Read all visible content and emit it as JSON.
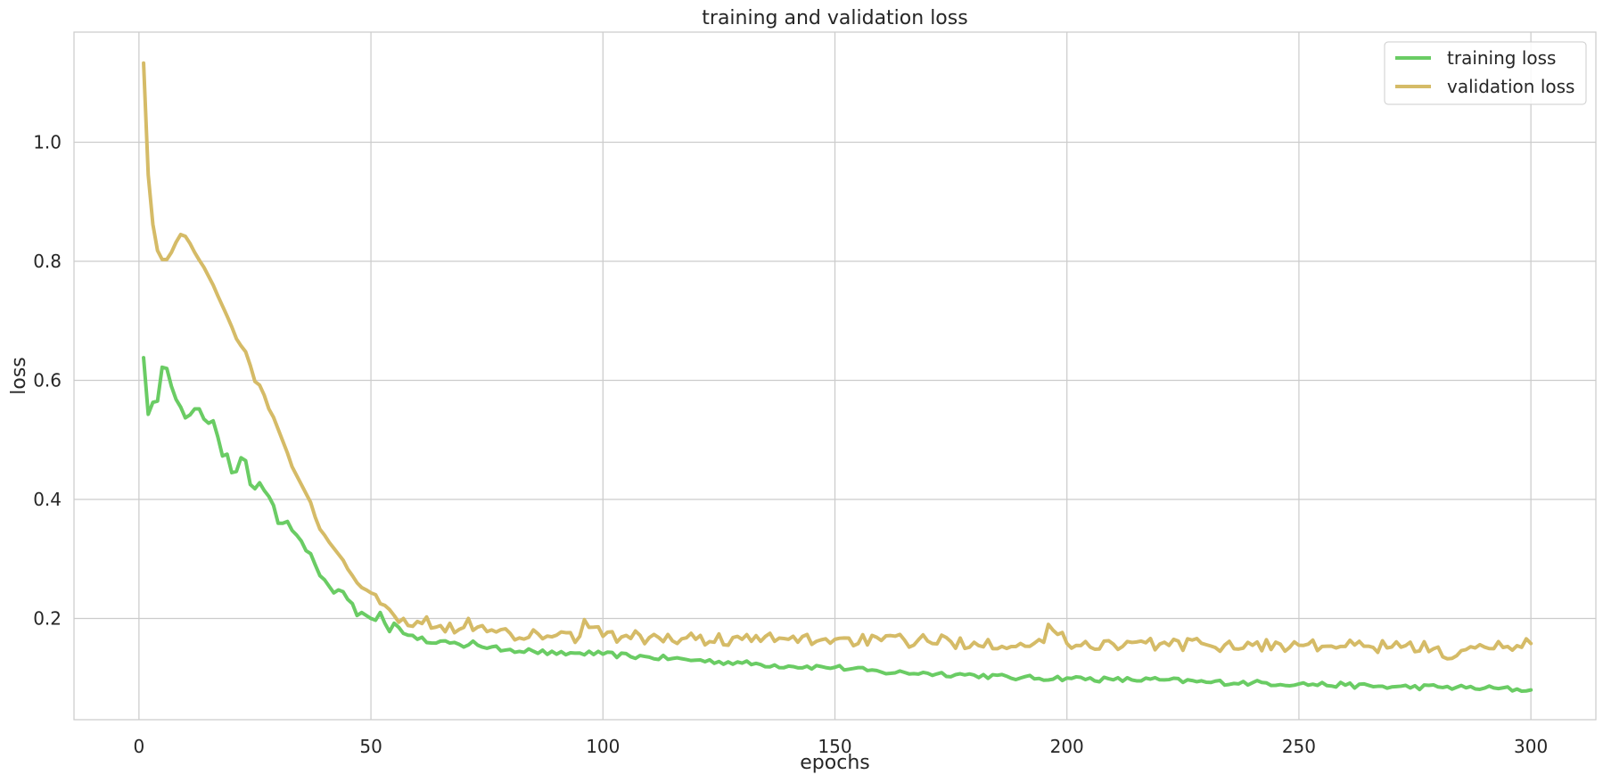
{
  "chart_data": {
    "type": "line",
    "title": "training and validation loss",
    "xlabel": "epochs",
    "ylabel": "loss",
    "xlim": [
      -14,
      314
    ],
    "ylim": [
      0.03,
      1.185
    ],
    "xticks": [
      0,
      50,
      100,
      150,
      200,
      250,
      300
    ],
    "yticks": [
      0.2,
      0.4,
      0.6,
      0.8,
      1.0
    ],
    "ytick_labels": [
      "0.2",
      "0.4",
      "0.6",
      "0.8",
      "1.0"
    ],
    "grid": true,
    "legend_position": "top-right",
    "series": [
      {
        "name": "training loss",
        "color": "#6acc64",
        "keypoints": [
          [
            1,
            0.638
          ],
          [
            2,
            0.543
          ],
          [
            3,
            0.563
          ],
          [
            4,
            0.565
          ],
          [
            5,
            0.622
          ],
          [
            6,
            0.62
          ],
          [
            7,
            0.59
          ],
          [
            8,
            0.568
          ],
          [
            9,
            0.555
          ],
          [
            10,
            0.537
          ],
          [
            11,
            0.542
          ],
          [
            12,
            0.552
          ],
          [
            13,
            0.552
          ],
          [
            14,
            0.535
          ],
          [
            15,
            0.528
          ],
          [
            16,
            0.532
          ],
          [
            17,
            0.505
          ],
          [
            18,
            0.473
          ],
          [
            19,
            0.476
          ],
          [
            20,
            0.445
          ],
          [
            21,
            0.447
          ],
          [
            22,
            0.47
          ],
          [
            23,
            0.465
          ],
          [
            24,
            0.425
          ],
          [
            25,
            0.418
          ],
          [
            26,
            0.428
          ],
          [
            27,
            0.415
          ],
          [
            28,
            0.405
          ],
          [
            29,
            0.39
          ],
          [
            30,
            0.36
          ],
          [
            31,
            0.36
          ],
          [
            32,
            0.363
          ],
          [
            33,
            0.348
          ],
          [
            34,
            0.34
          ],
          [
            35,
            0.33
          ],
          [
            36,
            0.314
          ],
          [
            37,
            0.309
          ],
          [
            38,
            0.29
          ],
          [
            39,
            0.272
          ],
          [
            40,
            0.265
          ],
          [
            42,
            0.243
          ],
          [
            43,
            0.248
          ],
          [
            44,
            0.245
          ],
          [
            45,
            0.232
          ],
          [
            46,
            0.225
          ],
          [
            47,
            0.205
          ],
          [
            48,
            0.21
          ],
          [
            50,
            0.2
          ],
          [
            51,
            0.197
          ],
          [
            52,
            0.21
          ],
          [
            53,
            0.192
          ],
          [
            54,
            0.178
          ],
          [
            55,
            0.192
          ],
          [
            56,
            0.185
          ],
          [
            58,
            0.172
          ],
          [
            60,
            0.165
          ],
          [
            65,
            0.162
          ],
          [
            70,
            0.152
          ],
          [
            72,
            0.162
          ],
          [
            75,
            0.15
          ],
          [
            80,
            0.148
          ],
          [
            85,
            0.145
          ],
          [
            90,
            0.14
          ],
          [
            95,
            0.142
          ],
          [
            100,
            0.14
          ],
          [
            110,
            0.135
          ],
          [
            120,
            0.13
          ],
          [
            130,
            0.125
          ],
          [
            140,
            0.12
          ],
          [
            150,
            0.118
          ],
          [
            160,
            0.11
          ],
          [
            170,
            0.108
          ],
          [
            180,
            0.105
          ],
          [
            190,
            0.1
          ],
          [
            200,
            0.1
          ],
          [
            210,
            0.097
          ],
          [
            220,
            0.097
          ],
          [
            230,
            0.093
          ],
          [
            240,
            0.092
          ],
          [
            250,
            0.09
          ],
          [
            260,
            0.088
          ],
          [
            270,
            0.085
          ],
          [
            280,
            0.085
          ],
          [
            290,
            0.083
          ],
          [
            300,
            0.08
          ]
        ],
        "noise": 0.0045
      },
      {
        "name": "validation loss",
        "color": "#d5bb67",
        "keypoints": [
          [
            1,
            1.133
          ],
          [
            2,
            0.945
          ],
          [
            3,
            0.862
          ],
          [
            4,
            0.818
          ],
          [
            5,
            0.803
          ],
          [
            6,
            0.803
          ],
          [
            7,
            0.815
          ],
          [
            8,
            0.832
          ],
          [
            9,
            0.845
          ],
          [
            10,
            0.842
          ],
          [
            11,
            0.83
          ],
          [
            12,
            0.815
          ],
          [
            13,
            0.802
          ],
          [
            14,
            0.79
          ],
          [
            15,
            0.775
          ],
          [
            16,
            0.76
          ],
          [
            17,
            0.742
          ],
          [
            18,
            0.725
          ],
          [
            19,
            0.708
          ],
          [
            20,
            0.69
          ],
          [
            21,
            0.67
          ],
          [
            22,
            0.658
          ],
          [
            23,
            0.648
          ],
          [
            24,
            0.625
          ],
          [
            25,
            0.598
          ],
          [
            26,
            0.592
          ],
          [
            27,
            0.575
          ],
          [
            28,
            0.552
          ],
          [
            29,
            0.538
          ],
          [
            30,
            0.518
          ],
          [
            31,
            0.498
          ],
          [
            32,
            0.478
          ],
          [
            33,
            0.455
          ],
          [
            34,
            0.44
          ],
          [
            35,
            0.425
          ],
          [
            36,
            0.41
          ],
          [
            37,
            0.395
          ],
          [
            38,
            0.37
          ],
          [
            39,
            0.35
          ],
          [
            40,
            0.34
          ],
          [
            41,
            0.328
          ],
          [
            42,
            0.318
          ],
          [
            43,
            0.308
          ],
          [
            44,
            0.298
          ],
          [
            45,
            0.283
          ],
          [
            46,
            0.272
          ],
          [
            47,
            0.26
          ],
          [
            48,
            0.252
          ],
          [
            49,
            0.248
          ],
          [
            50,
            0.243
          ],
          [
            51,
            0.24
          ],
          [
            52,
            0.225
          ],
          [
            53,
            0.222
          ],
          [
            54,
            0.215
          ],
          [
            55,
            0.205
          ],
          [
            57,
            0.2
          ],
          [
            60,
            0.195
          ],
          [
            65,
            0.188
          ],
          [
            70,
            0.185
          ],
          [
            71,
            0.2
          ],
          [
            72,
            0.18
          ],
          [
            75,
            0.178
          ],
          [
            80,
            0.175
          ],
          [
            90,
            0.172
          ],
          [
            95,
            0.17
          ],
          [
            96,
            0.198
          ],
          [
            100,
            0.17
          ],
          [
            110,
            0.168
          ],
          [
            120,
            0.165
          ],
          [
            130,
            0.165
          ],
          [
            140,
            0.165
          ],
          [
            150,
            0.165
          ],
          [
            160,
            0.163
          ],
          [
            170,
            0.162
          ],
          [
            180,
            0.16
          ],
          [
            190,
            0.158
          ],
          [
            195,
            0.16
          ],
          [
            196,
            0.19
          ],
          [
            200,
            0.158
          ],
          [
            210,
            0.157
          ],
          [
            220,
            0.157
          ],
          [
            230,
            0.156
          ],
          [
            240,
            0.155
          ],
          [
            250,
            0.155
          ],
          [
            260,
            0.153
          ],
          [
            270,
            0.152
          ],
          [
            280,
            0.152
          ],
          [
            283,
            0.133
          ],
          [
            290,
            0.152
          ],
          [
            300,
            0.158
          ]
        ],
        "noise": 0.011
      }
    ]
  }
}
